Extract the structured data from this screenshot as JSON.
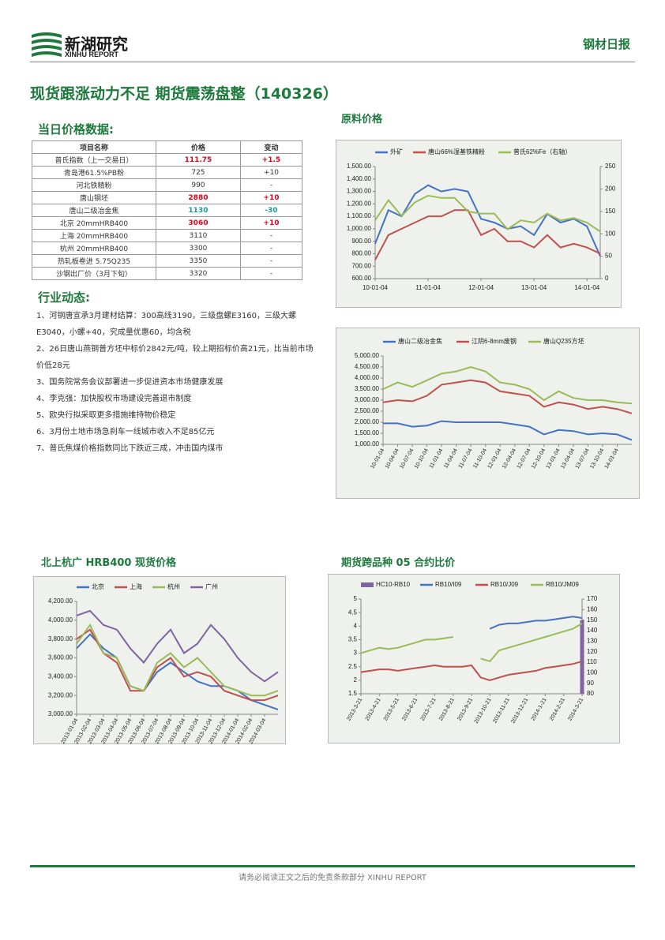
{
  "header": {
    "logo_cn": "新湖研究",
    "logo_en": "XINHU REPORT",
    "report": "钢材日报"
  },
  "title": "现货跟涨动力不足 期货震荡盘整（140326）",
  "section_price": "当日价格数据:",
  "table": {
    "header": [
      "项目名称",
      "价格",
      "变动"
    ],
    "rows": [
      {
        "cells": [
          "普氏指数（上一交易日）",
          "111.75",
          "+1.5"
        ],
        "color": "#e0001b"
      },
      {
        "cells": [
          "青岛港61.5%PB粉",
          "725",
          "+10"
        ]
      },
      {
        "cells": [
          "河北铁精粉",
          "990",
          "-"
        ]
      },
      {
        "cells": [
          "唐山钢坯",
          "2880",
          "+10"
        ],
        "color": "#e0001b"
      },
      {
        "cells": [
          "唐山二级冶金焦",
          "1130",
          "-30"
        ],
        "color": "#1a9a9a"
      },
      {
        "cells": [
          "北京 20mmHRB400",
          "3060",
          "+10"
        ],
        "color": "#e0001b"
      },
      {
        "cells": [
          "上海 20mmHRB400",
          "3110",
          "-"
        ]
      },
      {
        "cells": [
          "杭州 20mmHRB400",
          "3300",
          "-"
        ]
      },
      {
        "cells": [
          "热轧板卷进 5.75Q235",
          "3350",
          "-"
        ]
      },
      {
        "cells": [
          "沙钢出厂价（3月下旬）",
          "3320",
          "-"
        ]
      }
    ]
  },
  "section_news": "行业动态:",
  "news": [
    "1、河钢唐宣承3月建材结算：300高线3190，三级盘螺E3160，三级大螺E3040，小螺+40，究成量优惠60，均含税",
    "2、26日唐山燕钢普方坯中标价2842元/吨，较上期招标价高21元，比当前市场价低28元",
    "3、国务院常务会议部署进一步促进资本市场健康发展",
    "4、李克强：加快股权市场建设完善退市制度",
    "5、欧央行拟采取更多措施维持物价稳定",
    "6、3月份土地市场急刹车一线城市收入不足85亿元",
    "7、普氏焦煤价格指数同比下跌近三成，冲击国内煤市"
  ],
  "footer": "请务必阅读正文之后的免责条款部分 XINHU REPORT",
  "chart_data": [
    {
      "type": "line",
      "title": "原料价格",
      "categories": [
        "10-01-04",
        null,
        null,
        null,
        "11-01-04",
        null,
        null,
        null,
        "12-01-04",
        null,
        null,
        null,
        "13-01-04",
        null,
        null,
        null,
        "14-01-04",
        null
      ],
      "series": [
        {
          "name": "外矿",
          "color": "#4472c4",
          "values": [
            880,
            1150,
            1100,
            1280,
            1350,
            1300,
            1320,
            1300,
            1080,
            1050,
            1000,
            1020,
            950,
            1120,
            1050,
            1080,
            1020,
            780
          ]
        },
        {
          "name": "唐山66%湿基铁精粉",
          "color": "#c0504d",
          "values": [
            750,
            950,
            1000,
            1050,
            1100,
            1100,
            1150,
            1150,
            950,
            1000,
            900,
            900,
            850,
            950,
            850,
            880,
            850,
            800
          ]
        },
        {
          "name": "普氏62%Fe（右轴）",
          "color": "#9bbb59",
          "axis": "y2",
          "values": [
            130,
            175,
            140,
            170,
            185,
            180,
            180,
            150,
            145,
            145,
            110,
            130,
            125,
            145,
            130,
            135,
            125,
            105
          ]
        }
      ],
      "ylim": [
        600,
        1500
      ],
      "yticks": [
        {
          "value": 600,
          "label": "600.00"
        },
        {
          "value": 700,
          "label": "700.00"
        },
        {
          "value": 800,
          "label": "800.00"
        },
        {
          "value": 900,
          "label": "900.00"
        },
        {
          "value": 1000,
          "label": "1,000.00"
        },
        {
          "value": 1100,
          "label": "1,100.00"
        },
        {
          "value": 1200,
          "label": "1,200.00"
        },
        {
          "value": 1300,
          "label": "1,300.00"
        },
        {
          "value": 1400,
          "label": "1,400.00"
        },
        {
          "value": 1500,
          "label": "1,500.00"
        }
      ],
      "y2lim": [
        0,
        250
      ],
      "y2ticks": [
        0,
        50,
        100,
        150,
        200,
        250
      ]
    },
    {
      "type": "line",
      "categories": [
        "10-01-04",
        "10-04-04",
        "10-07-04",
        "10-10-04",
        "11-01-04",
        "11-04-04",
        "11-07-04",
        "11-10-04",
        "12-01-04",
        "12-04-04",
        "12-07-04",
        "12-10-04",
        "13-01-04",
        "13-04-04",
        "13-07-04",
        "13-10-04",
        "14-01-04",
        null
      ],
      "series": [
        {
          "name": "唐山二级冶金焦",
          "color": "#4472c4",
          "values": [
            1950,
            1950,
            1800,
            1850,
            2050,
            2000,
            2000,
            2000,
            2000,
            1900,
            1800,
            1450,
            1650,
            1600,
            1450,
            1500,
            1450,
            1200
          ]
        },
        {
          "name": "江阴6-8mm废钢",
          "color": "#c0504d",
          "values": [
            2900,
            3000,
            2950,
            3200,
            3700,
            3800,
            3900,
            3800,
            3400,
            3300,
            3200,
            2700,
            2900,
            2800,
            2600,
            2700,
            2600,
            2400
          ]
        },
        {
          "name": "唐山Q235方坯",
          "color": "#9bbb59",
          "values": [
            3500,
            3800,
            3600,
            3900,
            4200,
            4300,
            4500,
            4300,
            3800,
            3700,
            3500,
            3000,
            3400,
            3100,
            3000,
            3000,
            2900,
            2850
          ]
        }
      ],
      "ylim": [
        1000,
        5000
      ],
      "yticks": [
        {
          "value": 1000,
          "label": "1,000.00"
        },
        {
          "value": 1500,
          "label": "1,500.00"
        },
        {
          "value": 2000,
          "label": "2,000.00"
        },
        {
          "value": 2500,
          "label": "2,500.00"
        },
        {
          "value": 3000,
          "label": "3,000.00"
        },
        {
          "value": 3500,
          "label": "3,500.00"
        },
        {
          "value": 4000,
          "label": "4,000.00"
        },
        {
          "value": 4500,
          "label": "4,500.00"
        },
        {
          "value": 5000,
          "label": "5,000.00"
        }
      ]
    },
    {
      "type": "line",
      "title": "北上杭广 HRB400 现货价格",
      "categories": [
        "2013-01-04",
        "2013-02-04",
        "2013-03-04",
        "2013-04-04",
        "2013-05-04",
        "2013-06-04",
        "2013-07-04",
        "2013-08-04",
        "2013-09-04",
        "2013-10-04",
        "2013-11-04",
        "2013-12-04",
        "2014-01-04",
        "2014-02-04",
        "2014-03-04",
        null
      ],
      "series": [
        {
          "name": "北京",
          "color": "#4472c4",
          "values": [
            3700,
            3850,
            3700,
            3600,
            3300,
            3250,
            3450,
            3550,
            3450,
            3350,
            3300,
            3300,
            3250,
            3150,
            3100,
            3050
          ]
        },
        {
          "name": "上海",
          "color": "#c0504d",
          "values": [
            3800,
            3900,
            3650,
            3550,
            3250,
            3250,
            3500,
            3600,
            3400,
            3450,
            3400,
            3250,
            3200,
            3150,
            3150,
            3200
          ]
        },
        {
          "name": "杭州",
          "color": "#9bbb59",
          "values": [
            3750,
            3950,
            3650,
            3600,
            3300,
            3250,
            3550,
            3650,
            3500,
            3600,
            3450,
            3300,
            3250,
            3200,
            3200,
            3250
          ]
        },
        {
          "name": "广州",
          "color": "#8064a2",
          "values": [
            4050,
            4100,
            3950,
            3900,
            3700,
            3550,
            3750,
            3900,
            3650,
            3750,
            3950,
            3800,
            3600,
            3450,
            3350,
            3450
          ]
        }
      ],
      "ylim": [
        3000,
        4200
      ],
      "yticks": [
        {
          "value": 3000,
          "label": "3,000.00"
        },
        {
          "value": 3200,
          "label": "3,200.00"
        },
        {
          "value": 3400,
          "label": "3,400.00"
        },
        {
          "value": 3600,
          "label": "3,600.00"
        },
        {
          "value": 3800,
          "label": "3,800.00"
        },
        {
          "value": 4000,
          "label": "4,000.00"
        },
        {
          "value": 4200,
          "label": "4,200.00"
        }
      ]
    },
    {
      "type": "line",
      "title": "期货跨品种 05 合约比价",
      "categories": [
        "2013-3-21",
        null,
        "2013-4-21",
        null,
        "2013-5-21",
        null,
        "2013-6-21",
        null,
        "2013-7-21",
        null,
        "2013-8-21",
        null,
        "2013-9-21",
        null,
        "2013-10-21",
        null,
        "2013-11-21",
        null,
        "2013-12-21",
        null,
        "2014-1-21",
        null,
        "2014-2-21",
        null,
        "2014-3-21"
      ],
      "series": [
        {
          "name": "HC10-RB10",
          "color": "#8064a2",
          "type": "bar",
          "axis": "y2",
          "values": [
            null,
            null,
            null,
            null,
            null,
            null,
            null,
            null,
            null,
            null,
            null,
            null,
            null,
            null,
            null,
            null,
            null,
            null,
            null,
            null,
            null,
            null,
            null,
            null,
            150
          ]
        },
        {
          "name": "RB10/I09",
          "color": "#4472c4",
          "values": [
            null,
            null,
            null,
            null,
            null,
            null,
            null,
            null,
            null,
            null,
            null,
            null,
            null,
            null,
            3.9,
            4.05,
            4.1,
            4.1,
            4.15,
            4.2,
            4.2,
            4.25,
            4.3,
            4.35,
            4.3
          ]
        },
        {
          "name": "RB10/J09",
          "color": "#c0504d",
          "values": [
            2.3,
            2.35,
            2.4,
            2.4,
            2.35,
            2.4,
            2.45,
            2.5,
            2.55,
            2.5,
            2.5,
            2.5,
            2.55,
            2.1,
            2.0,
            2.1,
            2.2,
            2.25,
            2.3,
            2.35,
            2.45,
            2.5,
            2.55,
            2.6,
            2.7
          ]
        },
        {
          "name": "RB10/JM09",
          "color": "#9bbb59",
          "values": [
            3.0,
            3.1,
            3.2,
            3.15,
            3.2,
            3.3,
            3.4,
            3.5,
            3.5,
            3.55,
            3.6,
            null,
            null,
            2.8,
            2.7,
            3.1,
            3.2,
            3.3,
            3.4,
            3.5,
            3.6,
            3.7,
            3.8,
            3.9,
            4.1
          ]
        }
      ],
      "ylim": [
        1.5,
        5
      ],
      "yticks": [
        1.5,
        2,
        2.5,
        3,
        3.5,
        4,
        4.5,
        5
      ],
      "y2lim": [
        80,
        170
      ],
      "y2ticks": [
        80,
        90,
        100,
        110,
        120,
        130,
        140,
        150,
        160,
        170
      ]
    }
  ]
}
